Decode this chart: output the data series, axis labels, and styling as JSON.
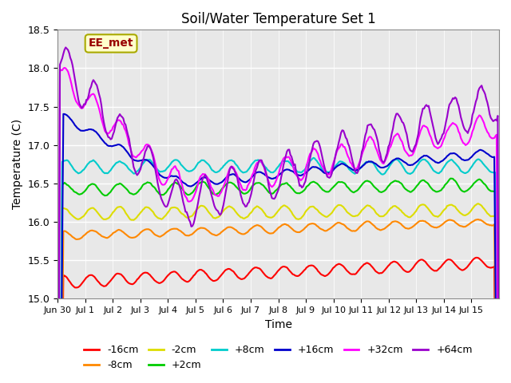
{
  "title": "Soil/Water Temperature Set 1",
  "xlabel": "Time",
  "ylabel": "Temperature (C)",
  "ylim": [
    15.0,
    18.5
  ],
  "n_days": 16,
  "annotation_text": "EE_met",
  "annotation_bg": "#ffffcc",
  "annotation_border": "#aaaa00",
  "annotation_text_color": "#990000",
  "background_color": "#ffffff",
  "plot_bg_color": "#e8e8e8",
  "grid_color": "#ffffff",
  "series": [
    {
      "label": "-16cm",
      "color": "#ff0000"
    },
    {
      "label": "-8cm",
      "color": "#ff8800"
    },
    {
      "label": "-2cm",
      "color": "#dddd00"
    },
    {
      "label": "+2cm",
      "color": "#00cc00"
    },
    {
      "label": "+8cm",
      "color": "#00cccc"
    },
    {
      "label": "+16cm",
      "color": "#0000cc"
    },
    {
      "label": "+32cm",
      "color": "#ff00ff"
    },
    {
      "label": "+64cm",
      "color": "#9900cc"
    }
  ],
  "xtick_labels": [
    "Jun 30",
    "Jul 1",
    "Jul 2",
    "Jul 3",
    "Jul 4",
    "Jul 5",
    "Jul 6",
    "Jul 7",
    "Jul 8",
    "Jul 9",
    "Jul 10",
    "Jul 11",
    "Jul 12",
    "Jul 13",
    "Jul 14",
    "Jul 15"
  ],
  "ytick_vals": [
    15.0,
    15.5,
    16.0,
    16.5,
    17.0,
    17.5,
    18.0,
    18.5
  ]
}
